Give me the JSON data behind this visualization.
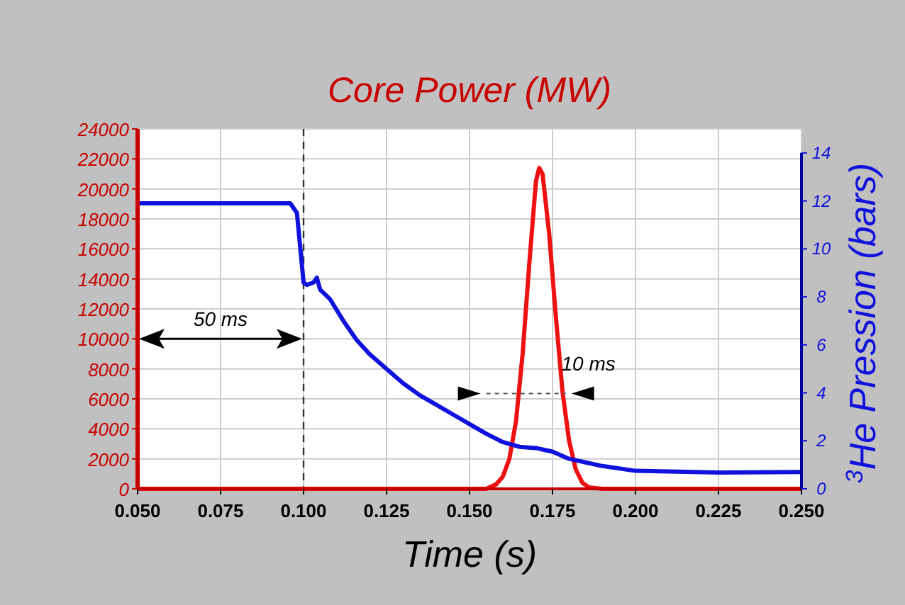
{
  "chart_data": {
    "type": "line",
    "title": "Core Power (MW)",
    "xlabel": "Time (s)",
    "y2label": "$^{3}$He Pression (bars)",
    "xlim": [
      0.05,
      0.25
    ],
    "xticks": [
      {
        "value": 0.05,
        "label": "0.050"
      },
      {
        "value": 0.075,
        "label": "0.075"
      },
      {
        "value": 0.1,
        "label": "0.100"
      },
      {
        "value": 0.125,
        "label": "0.125"
      },
      {
        "value": 0.15,
        "label": "0.150"
      },
      {
        "value": 0.175,
        "label": "0.175"
      },
      {
        "value": 0.2,
        "label": "0.200"
      },
      {
        "value": 0.225,
        "label": "0.225"
      },
      {
        "value": 0.25,
        "label": "0.250"
      }
    ],
    "ylim": [
      0,
      24000
    ],
    "yticks": [
      0,
      2000,
      4000,
      6000,
      8000,
      10000,
      12000,
      14000,
      16000,
      18000,
      20000,
      22000,
      24000
    ],
    "y2lim": [
      0,
      15
    ],
    "y2ticks": [
      0,
      2,
      4,
      6,
      8,
      10,
      12,
      14
    ],
    "grid": true,
    "line_style": "solid",
    "series": [
      {
        "color": "#ee1111",
        "x": [
          0.05,
          0.15,
          0.155,
          0.158,
          0.16,
          0.162,
          0.164,
          0.166,
          0.168,
          0.17,
          0.171,
          0.172,
          0.174,
          0.176,
          0.178,
          0.18,
          0.182,
          0.184,
          0.186,
          0.19,
          0.25
        ],
        "values": [
          0,
          0,
          0,
          300,
          800,
          2000,
          4500,
          9000,
          15000,
          20500,
          21400,
          21000,
          17000,
          11500,
          6500,
          3200,
          1300,
          400,
          100,
          0,
          0
        ]
      },
      {
        "color": "#1111dd",
        "axis": "y2",
        "x": [
          0.05,
          0.096,
          0.098,
          0.1,
          0.101,
          0.103,
          0.104,
          0.105,
          0.108,
          0.112,
          0.116,
          0.12,
          0.125,
          0.13,
          0.135,
          0.14,
          0.145,
          0.15,
          0.155,
          0.16,
          0.165,
          0.17,
          0.175,
          0.18,
          0.185,
          0.19,
          0.2,
          0.21,
          0.225,
          0.25
        ],
        "values": [
          11.9,
          11.9,
          11.5,
          8.6,
          8.5,
          8.6,
          8.8,
          8.3,
          7.9,
          7.0,
          6.2,
          5.6,
          5.0,
          4.4,
          3.9,
          3.5,
          3.1,
          2.7,
          2.3,
          1.95,
          1.75,
          1.7,
          1.55,
          1.25,
          1.1,
          0.95,
          0.75,
          0.72,
          0.68,
          0.7
        ]
      }
    ],
    "ref_lines": [
      {
        "axis": "x",
        "value": 0.1,
        "color": "#333333",
        "line_style": "dashed"
      }
    ],
    "annotations": [
      "50 ms",
      "10 ms"
    ]
  }
}
